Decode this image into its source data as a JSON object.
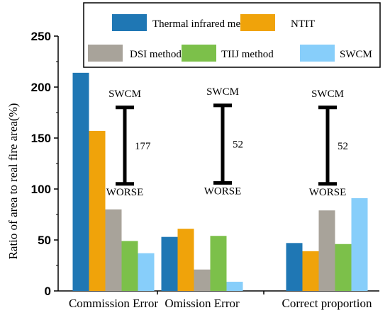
{
  "chart_data": {
    "type": "bar",
    "categories": [
      "Commission Error",
      "Omission Error",
      "Correct proportion"
    ],
    "series": [
      {
        "name": "Thermal infrared method",
        "color": "#1f77b4",
        "values": [
          214,
          53,
          47
        ]
      },
      {
        "name": "NTIT",
        "color": "#f0a30a",
        "values": [
          157,
          61,
          39
        ]
      },
      {
        "name": "DSI method",
        "color": "#a8a39a",
        "values": [
          80,
          21,
          79
        ]
      },
      {
        "name": "TIIJ method",
        "color": "#7cc04a",
        "values": [
          49,
          54,
          46
        ]
      },
      {
        "name": "SWCM",
        "color": "#87cefa",
        "values": [
          37,
          9,
          91
        ]
      }
    ],
    "ylabel": "Ratio of area to real fire area(%)",
    "xlabel": "",
    "ylim": [
      0,
      250
    ],
    "yticks": [
      0,
      50,
      100,
      150,
      200,
      250
    ],
    "legend_position": "top",
    "annotations": [
      {
        "category": "Commission Error",
        "top_label": "SWCM",
        "bottom_label": "WORSE",
        "value_label": "177",
        "range": [
          105,
          180
        ]
      },
      {
        "category": "Omission Error",
        "top_label": "SWCM",
        "bottom_label": "WORSE",
        "value_label": "52",
        "range": [
          106,
          182
        ]
      },
      {
        "category": "Correct proportion",
        "top_label": "SWCM",
        "bottom_label": "WORSE",
        "value_label": "52",
        "range": [
          105,
          180
        ]
      }
    ]
  }
}
